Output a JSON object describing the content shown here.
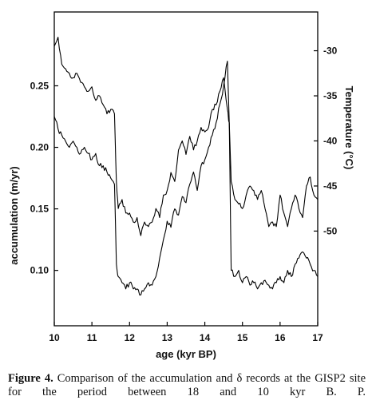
{
  "chart_data": {
    "type": "line",
    "xlabel": "age (kyr BP)",
    "xlim": [
      10,
      17
    ],
    "x_ticks": [
      "10",
      "11",
      "12",
      "13",
      "14",
      "15",
      "16",
      "17"
    ],
    "y_left": {
      "label": "accumulation (m/yr)",
      "lim": [
        0.055,
        0.31
      ],
      "ticks": [
        "0.10",
        "0.15",
        "0.20",
        "0.25"
      ]
    },
    "y_right": {
      "label": "Temperature (°C)",
      "lim": [
        -60.5,
        -25.7
      ],
      "ticks": [
        "-30",
        "-35",
        "-40",
        "-45",
        "-50"
      ]
    },
    "series": [
      {
        "axis": "right",
        "color": "#000000",
        "x": [
          10.0,
          10.1,
          10.2,
          10.3,
          10.4,
          10.5,
          10.6,
          10.7,
          10.8,
          10.9,
          11.0,
          11.1,
          11.2,
          11.3,
          11.4,
          11.5,
          11.6,
          11.65,
          11.7,
          11.8,
          11.9,
          12.0,
          12.1,
          12.2,
          12.3,
          12.4,
          12.5,
          12.6,
          12.7,
          12.8,
          12.9,
          13.0,
          13.1,
          13.2,
          13.3,
          13.4,
          13.5,
          13.6,
          13.7,
          13.8,
          13.9,
          14.0,
          14.1,
          14.2,
          14.3,
          14.4,
          14.5,
          14.6,
          14.65,
          14.7,
          14.8,
          14.9,
          15.0,
          15.1,
          15.2,
          15.3,
          15.4,
          15.5,
          15.6,
          15.7,
          15.8,
          15.9,
          16.0,
          16.1,
          16.2,
          16.3,
          16.4,
          16.5,
          16.6,
          16.7,
          16.8,
          16.9,
          17.0
        ],
        "values": [
          -29.5,
          -28.5,
          -31.5,
          -32.0,
          -32.5,
          -33.0,
          -32.5,
          -33.5,
          -34.0,
          -34.5,
          -34.0,
          -35.5,
          -35.0,
          -36.0,
          -37.0,
          -36.5,
          -37.0,
          -44.5,
          -47.5,
          -46.5,
          -48.0,
          -48.0,
          -49.0,
          -48.5,
          -50.5,
          -49.0,
          -49.5,
          -49.0,
          -47.5,
          -48.5,
          -46.0,
          -45.5,
          -43.5,
          -44.5,
          -41.0,
          -40.0,
          -41.5,
          -39.5,
          -41.0,
          -40.0,
          -38.5,
          -39.0,
          -38.5,
          -36.5,
          -36.0,
          -34.5,
          -33.0,
          -36.5,
          -38.0,
          -44.5,
          -46.5,
          -47.0,
          -47.5,
          -46.0,
          -45.0,
          -45.5,
          -46.5,
          -45.5,
          -47.5,
          -49.5,
          -49.0,
          -49.5,
          -46.0,
          -48.0,
          -49.5,
          -47.5,
          -46.0,
          -47.5,
          -48.5,
          -45.0,
          -44.0,
          -46.0,
          -46.5
        ]
      },
      {
        "axis": "left",
        "color": "#000000",
        "x": [
          10.0,
          10.1,
          10.2,
          10.3,
          10.4,
          10.5,
          10.6,
          10.7,
          10.8,
          10.9,
          11.0,
          11.1,
          11.2,
          11.3,
          11.4,
          11.5,
          11.6,
          11.65,
          11.7,
          11.8,
          11.9,
          12.0,
          12.1,
          12.2,
          12.3,
          12.4,
          12.5,
          12.6,
          12.7,
          12.8,
          12.9,
          13.0,
          13.1,
          13.2,
          13.3,
          13.4,
          13.5,
          13.6,
          13.7,
          13.8,
          13.9,
          14.0,
          14.1,
          14.2,
          14.3,
          14.4,
          14.5,
          14.6,
          14.65,
          14.7,
          14.8,
          14.9,
          15.0,
          15.1,
          15.2,
          15.3,
          15.4,
          15.5,
          15.6,
          15.7,
          15.8,
          15.9,
          16.0,
          16.1,
          16.2,
          16.3,
          16.4,
          16.5,
          16.6,
          16.7,
          16.8,
          16.9,
          17.0
        ],
        "values": [
          0.225,
          0.215,
          0.21,
          0.205,
          0.2,
          0.205,
          0.2,
          0.195,
          0.2,
          0.195,
          0.19,
          0.195,
          0.185,
          0.185,
          0.18,
          0.175,
          0.17,
          0.105,
          0.095,
          0.09,
          0.085,
          0.09,
          0.085,
          0.085,
          0.08,
          0.085,
          0.09,
          0.088,
          0.095,
          0.11,
          0.125,
          0.14,
          0.135,
          0.15,
          0.145,
          0.16,
          0.155,
          0.17,
          0.18,
          0.165,
          0.185,
          0.19,
          0.2,
          0.21,
          0.22,
          0.235,
          0.25,
          0.27,
          0.22,
          0.1,
          0.095,
          0.1,
          0.09,
          0.095,
          0.088,
          0.09,
          0.085,
          0.09,
          0.092,
          0.088,
          0.085,
          0.09,
          0.095,
          0.09,
          0.1,
          0.095,
          0.105,
          0.11,
          0.115,
          0.11,
          0.105,
          0.1,
          0.095
        ]
      }
    ]
  },
  "caption": {
    "label": "Figure 4.",
    "text": "Comparison of the accumulation and δ records at the GISP2 site for the period between 18 and 10 kyr B. P."
  }
}
